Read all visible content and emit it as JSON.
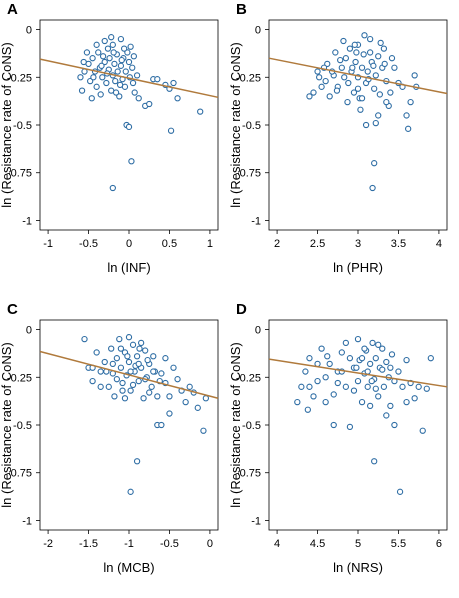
{
  "chart_data": [
    {
      "type": "scatter",
      "panel_label": "A",
      "xlabel": "ln (INF)",
      "ylabel": "ln (Resistance rate of CoNS)",
      "xlim": [
        -1.1,
        1.1
      ],
      "ylim": [
        -1.05,
        0.05
      ],
      "xticks": [
        -1,
        -0.5,
        0,
        0.5,
        1
      ],
      "xtick_labels": [
        "-1",
        "-0.5",
        "0",
        "0.5",
        "1"
      ],
      "yticks": [
        0,
        -0.25,
        -0.5,
        -0.75,
        -1
      ],
      "ytick_labels": [
        "0",
        "-0.25",
        "-0.5",
        "-0.75",
        "-1"
      ],
      "trend_line": [
        [
          -1.1,
          -0.155
        ],
        [
          1.1,
          -0.355
        ]
      ],
      "colors": {
        "marker": "#2e6da4",
        "trend": "#b07a3c"
      },
      "points": [
        [
          -0.55,
          -0.22
        ],
        [
          -0.5,
          -0.18
        ],
        [
          -0.48,
          -0.27
        ],
        [
          -0.45,
          -0.15
        ],
        [
          -0.42,
          -0.22
        ],
        [
          -0.4,
          -0.3
        ],
        [
          -0.38,
          -0.12
        ],
        [
          -0.36,
          -0.2
        ],
        [
          -0.35,
          -0.34
        ],
        [
          -0.33,
          -0.25
        ],
        [
          -0.3,
          -0.06
        ],
        [
          -0.3,
          -0.17
        ],
        [
          -0.28,
          -0.28
        ],
        [
          -0.26,
          -0.1
        ],
        [
          -0.25,
          -0.21
        ],
        [
          -0.24,
          -0.15
        ],
        [
          -0.22,
          -0.32
        ],
        [
          -0.2,
          -0.24
        ],
        [
          -0.2,
          -0.08
        ],
        [
          -0.18,
          -0.18
        ],
        [
          -0.17,
          -0.27
        ],
        [
          -0.15,
          -0.13
        ],
        [
          -0.14,
          -0.22
        ],
        [
          -0.12,
          -0.35
        ],
        [
          -0.1,
          -0.19
        ],
        [
          -0.1,
          -0.05
        ],
        [
          -0.08,
          -0.26
        ],
        [
          -0.07,
          -0.15
        ],
        [
          -0.05,
          -0.3
        ],
        [
          -0.04,
          -0.22
        ],
        [
          -0.02,
          -0.12
        ],
        [
          0,
          -0.17
        ],
        [
          0.01,
          -0.25
        ],
        [
          0.02,
          -0.09
        ],
        [
          0.04,
          -0.2
        ],
        [
          0.05,
          -0.28
        ],
        [
          -0.03,
          -0.5
        ],
        [
          0,
          -0.51
        ],
        [
          0.03,
          -0.69
        ],
        [
          -0.2,
          -0.83
        ],
        [
          -0.6,
          -0.25
        ],
        [
          -0.58,
          -0.32
        ],
        [
          -0.52,
          -0.12
        ],
        [
          -0.46,
          -0.36
        ],
        [
          -0.32,
          -0.14
        ],
        [
          -0.16,
          -0.33
        ],
        [
          -0.06,
          -0.1
        ],
        [
          0.06,
          -0.14
        ],
        [
          0.1,
          -0.24
        ],
        [
          0.12,
          -0.36
        ],
        [
          0.2,
          -0.4
        ],
        [
          0.25,
          -0.39
        ],
        [
          0.3,
          -0.26
        ],
        [
          0.35,
          -0.26
        ],
        [
          0.45,
          -0.29
        ],
        [
          0.5,
          -0.31
        ],
        [
          0.55,
          -0.28
        ],
        [
          0.6,
          -0.36
        ],
        [
          0.52,
          -0.53
        ],
        [
          0.88,
          -0.43
        ],
        [
          -0.44,
          -0.25
        ],
        [
          -0.34,
          -0.19
        ],
        [
          -0.27,
          -0.23
        ],
        [
          -0.19,
          -0.12
        ],
        [
          -0.11,
          -0.29
        ],
        [
          -0.09,
          -0.16
        ],
        [
          0.07,
          -0.33
        ],
        [
          -0.4,
          -0.08
        ],
        [
          -0.22,
          -0.04
        ],
        [
          -0.56,
          -0.17
        ]
      ]
    },
    {
      "type": "scatter",
      "panel_label": "B",
      "xlabel": "ln (PHR)",
      "ylabel": "ln (Resistance rate of CoNS)",
      "xlim": [
        1.9,
        4.1
      ],
      "ylim": [
        -1.05,
        0.05
      ],
      "xticks": [
        2,
        2.5,
        3,
        3.5,
        4
      ],
      "xtick_labels": [
        "2",
        "2.5",
        "3",
        "3.5",
        "4"
      ],
      "yticks": [
        0,
        -0.25,
        -0.5,
        -0.75,
        -1
      ],
      "ytick_labels": [
        "0",
        "-0.25",
        "-0.5",
        "-0.75",
        "-1"
      ],
      "trend_line": [
        [
          1.9,
          -0.15
        ],
        [
          4.1,
          -0.335
        ]
      ],
      "colors": {
        "marker": "#2e6da4",
        "trend": "#b07a3c"
      },
      "points": [
        [
          2.4,
          -0.35
        ],
        [
          2.45,
          -0.33
        ],
        [
          2.5,
          -0.22
        ],
        [
          2.55,
          -0.3
        ],
        [
          2.6,
          -0.27
        ],
        [
          2.62,
          -0.18
        ],
        [
          2.7,
          -0.24
        ],
        [
          2.72,
          -0.12
        ],
        [
          2.75,
          -0.3
        ],
        [
          2.8,
          -0.2
        ],
        [
          2.82,
          -0.06
        ],
        [
          2.85,
          -0.15
        ],
        [
          2.88,
          -0.28
        ],
        [
          2.9,
          -0.1
        ],
        [
          2.92,
          -0.22
        ],
        [
          2.95,
          -0.33
        ],
        [
          2.97,
          -0.17
        ],
        [
          3.0,
          -0.25
        ],
        [
          3.0,
          -0.08
        ],
        [
          3.02,
          -0.36
        ],
        [
          3.05,
          -0.2
        ],
        [
          3.07,
          -0.13
        ],
        [
          3.1,
          -0.28
        ],
        [
          3.12,
          -0.22
        ],
        [
          3.15,
          -0.05
        ],
        [
          3.17,
          -0.17
        ],
        [
          3.2,
          -0.31
        ],
        [
          3.22,
          -0.24
        ],
        [
          3.25,
          -0.14
        ],
        [
          3.27,
          -0.34
        ],
        [
          3.3,
          -0.2
        ],
        [
          3.32,
          -0.1
        ],
        [
          3.35,
          -0.27
        ],
        [
          3.38,
          -0.4
        ],
        [
          3.1,
          -0.5
        ],
        [
          3.22,
          -0.49
        ],
        [
          3.2,
          -0.7
        ],
        [
          3.18,
          -0.83
        ],
        [
          3.6,
          -0.45
        ],
        [
          3.62,
          -0.52
        ],
        [
          3.65,
          -0.38
        ],
        [
          3.7,
          -0.24
        ],
        [
          3.72,
          -0.3
        ],
        [
          3.5,
          -0.28
        ],
        [
          3.55,
          -0.3
        ],
        [
          3.45,
          -0.2
        ],
        [
          3.42,
          -0.15
        ],
        [
          3.4,
          -0.33
        ],
        [
          2.65,
          -0.35
        ],
        [
          2.58,
          -0.2
        ],
        [
          2.78,
          -0.16
        ],
        [
          2.98,
          -0.12
        ],
        [
          3.08,
          -0.03
        ],
        [
          3.28,
          -0.07
        ],
        [
          3.35,
          -0.38
        ],
        [
          3.05,
          -0.36
        ],
        [
          2.93,
          -0.2
        ],
        [
          3.13,
          -0.26
        ],
        [
          2.68,
          -0.22
        ],
        [
          2.87,
          -0.38
        ],
        [
          3.25,
          -0.45
        ],
        [
          3.03,
          -0.42
        ],
        [
          2.83,
          -0.25
        ],
        [
          3.15,
          -0.12
        ],
        [
          2.96,
          -0.08
        ],
        [
          3.33,
          -0.18
        ],
        [
          2.74,
          -0.32
        ],
        [
          3.0,
          -0.31
        ],
        [
          3.19,
          -0.19
        ],
        [
          2.52,
          -0.25
        ]
      ]
    },
    {
      "type": "scatter",
      "panel_label": "C",
      "xlabel": "ln (MCB)",
      "ylabel": "ln (Resistance rate of CoNS)",
      "xlim": [
        -2.1,
        0.1
      ],
      "ylim": [
        -1.05,
        0.05
      ],
      "xticks": [
        -2,
        -1.5,
        -1,
        -0.5,
        0
      ],
      "xtick_labels": [
        "-2",
        "-1.5",
        "-1",
        "-0.5",
        "0"
      ],
      "yticks": [
        0,
        -0.25,
        -0.5,
        -0.75,
        -1
      ],
      "ytick_labels": [
        "0",
        "-0.25",
        "-0.5",
        "-0.75",
        "-1"
      ],
      "trend_line": [
        [
          -2.1,
          -0.115
        ],
        [
          0.1,
          -0.36
        ]
      ],
      "colors": {
        "marker": "#2e6da4",
        "trend": "#b07a3c"
      },
      "points": [
        [
          -1.55,
          -0.05
        ],
        [
          -1.5,
          -0.2
        ],
        [
          -1.45,
          -0.27
        ],
        [
          -1.4,
          -0.12
        ],
        [
          -1.35,
          -0.22
        ],
        [
          -1.3,
          -0.17
        ],
        [
          -1.25,
          -0.3
        ],
        [
          -1.22,
          -0.1
        ],
        [
          -1.2,
          -0.23
        ],
        [
          -1.18,
          -0.35
        ],
        [
          -1.15,
          -0.15
        ],
        [
          -1.12,
          -0.05
        ],
        [
          -1.1,
          -0.2
        ],
        [
          -1.08,
          -0.28
        ],
        [
          -1.05,
          -0.12
        ],
        [
          -1.03,
          -0.24
        ],
        [
          -1.0,
          -0.17
        ],
        [
          -0.98,
          -0.32
        ],
        [
          -0.95,
          -0.08
        ],
        [
          -0.93,
          -0.22
        ],
        [
          -0.9,
          -0.14
        ],
        [
          -0.88,
          -0.27
        ],
        [
          -0.85,
          -0.2
        ],
        [
          -0.82,
          -0.36
        ],
        [
          -0.8,
          -0.11
        ],
        [
          -0.78,
          -0.25
        ],
        [
          -0.75,
          -0.18
        ],
        [
          -0.72,
          -0.3
        ],
        [
          -0.7,
          -0.14
        ],
        [
          -0.68,
          -0.22
        ],
        [
          -0.65,
          -0.5
        ],
        [
          -0.6,
          -0.5
        ],
        [
          -0.9,
          -0.69
        ],
        [
          -0.98,
          -0.85
        ],
        [
          -0.55,
          -0.28
        ],
        [
          -0.5,
          -0.35
        ],
        [
          -0.45,
          -0.2
        ],
        [
          -0.4,
          -0.26
        ],
        [
          -0.35,
          -0.32
        ],
        [
          -0.3,
          -0.38
        ],
        [
          -0.25,
          -0.3
        ],
        [
          -0.2,
          -0.33
        ],
        [
          -0.15,
          -0.41
        ],
        [
          -0.08,
          -0.53
        ],
        [
          -0.05,
          -0.36
        ],
        [
          -0.5,
          -0.44
        ],
        [
          -0.55,
          -0.15
        ],
        [
          -0.6,
          -0.23
        ],
        [
          -1.28,
          -0.22
        ],
        [
          -1.05,
          -0.36
        ],
        [
          -0.95,
          -0.29
        ],
        [
          -1.15,
          -0.26
        ],
        [
          -0.85,
          -0.07
        ],
        [
          -0.75,
          -0.33
        ],
        [
          -1.0,
          -0.04
        ],
        [
          -1.1,
          -0.1
        ],
        [
          -0.92,
          -0.19
        ],
        [
          -0.8,
          -0.26
        ],
        [
          -1.02,
          -0.14
        ],
        [
          -0.87,
          -0.1
        ],
        [
          -1.35,
          -0.3
        ],
        [
          -0.7,
          -0.22
        ],
        [
          -0.65,
          -0.35
        ],
        [
          -1.2,
          -0.18
        ],
        [
          -0.98,
          -0.22
        ],
        [
          -0.77,
          -0.16
        ],
        [
          -1.08,
          -0.32
        ],
        [
          -0.88,
          -0.18
        ],
        [
          -1.45,
          -0.2
        ],
        [
          -0.62,
          -0.27
        ]
      ]
    },
    {
      "type": "scatter",
      "panel_label": "D",
      "xlabel": "ln (NRS)",
      "ylabel": "ln (Resistance rate of CoNS)",
      "xlim": [
        3.9,
        6.1
      ],
      "ylim": [
        -1.05,
        0.05
      ],
      "xticks": [
        4,
        4.5,
        5,
        5.5,
        6
      ],
      "xtick_labels": [
        "4",
        "4.5",
        "5",
        "5.5",
        "6"
      ],
      "yticks": [
        0,
        -0.25,
        -0.5,
        -0.75,
        -1
      ],
      "ytick_labels": [
        "0",
        "-0.25",
        "-0.5",
        "-0.75",
        "-1"
      ],
      "trend_line": [
        [
          3.9,
          -0.155
        ],
        [
          6.1,
          -0.3
        ]
      ],
      "colors": {
        "marker": "#2e6da4",
        "trend": "#b07a3c"
      },
      "points": [
        [
          4.25,
          -0.38
        ],
        [
          4.3,
          -0.3
        ],
        [
          4.35,
          -0.22
        ],
        [
          4.4,
          -0.15
        ],
        [
          4.45,
          -0.35
        ],
        [
          4.5,
          -0.27
        ],
        [
          4.55,
          -0.1
        ],
        [
          4.6,
          -0.25
        ],
        [
          4.65,
          -0.18
        ],
        [
          4.7,
          -0.34
        ],
        [
          4.75,
          -0.22
        ],
        [
          4.8,
          -0.12
        ],
        [
          4.85,
          -0.3
        ],
        [
          4.9,
          -0.51
        ],
        [
          4.95,
          -0.2
        ],
        [
          5.0,
          -0.05
        ],
        [
          5.0,
          -0.27
        ],
        [
          5.02,
          -0.16
        ],
        [
          5.05,
          -0.38
        ],
        [
          5.08,
          -0.23
        ],
        [
          5.1,
          -0.11
        ],
        [
          5.12,
          -0.3
        ],
        [
          5.15,
          -0.18
        ],
        [
          5.18,
          -0.07
        ],
        [
          5.2,
          -0.26
        ],
        [
          5.22,
          -0.15
        ],
        [
          5.25,
          -0.35
        ],
        [
          5.27,
          -0.2
        ],
        [
          5.3,
          -0.1
        ],
        [
          5.32,
          -0.3
        ],
        [
          5.35,
          -0.17
        ],
        [
          5.38,
          -0.25
        ],
        [
          5.4,
          -0.4
        ],
        [
          5.42,
          -0.13
        ],
        [
          5.45,
          -0.5
        ],
        [
          5.5,
          -0.22
        ],
        [
          5.52,
          -0.85
        ],
        [
          5.55,
          -0.3
        ],
        [
          5.6,
          -0.38
        ],
        [
          5.65,
          -0.28
        ],
        [
          5.7,
          -0.36
        ],
        [
          5.75,
          -0.3
        ],
        [
          5.8,
          -0.53
        ],
        [
          5.85,
          -0.31
        ],
        [
          5.9,
          -0.15
        ],
        [
          5.2,
          -0.69
        ],
        [
          4.6,
          -0.38
        ],
        [
          4.7,
          -0.5
        ],
        [
          4.8,
          -0.22
        ],
        [
          4.9,
          -0.15
        ],
        [
          4.5,
          -0.18
        ],
        [
          4.4,
          -0.3
        ],
        [
          5.15,
          -0.4
        ],
        [
          5.25,
          -0.08
        ],
        [
          5.35,
          -0.45
        ],
        [
          4.95,
          -0.32
        ],
        [
          5.05,
          -0.15
        ],
        [
          5.3,
          -0.21
        ],
        [
          5.12,
          -0.22
        ],
        [
          4.85,
          -0.07
        ],
        [
          4.62,
          -0.14
        ],
        [
          5.45,
          -0.27
        ],
        [
          5.6,
          -0.16
        ],
        [
          4.38,
          -0.42
        ],
        [
          5.22,
          -0.31
        ],
        [
          5.08,
          -0.1
        ],
        [
          4.75,
          -0.28
        ],
        [
          5.4,
          -0.2
        ],
        [
          5.17,
          -0.27
        ],
        [
          4.98,
          -0.2
        ]
      ]
    }
  ]
}
